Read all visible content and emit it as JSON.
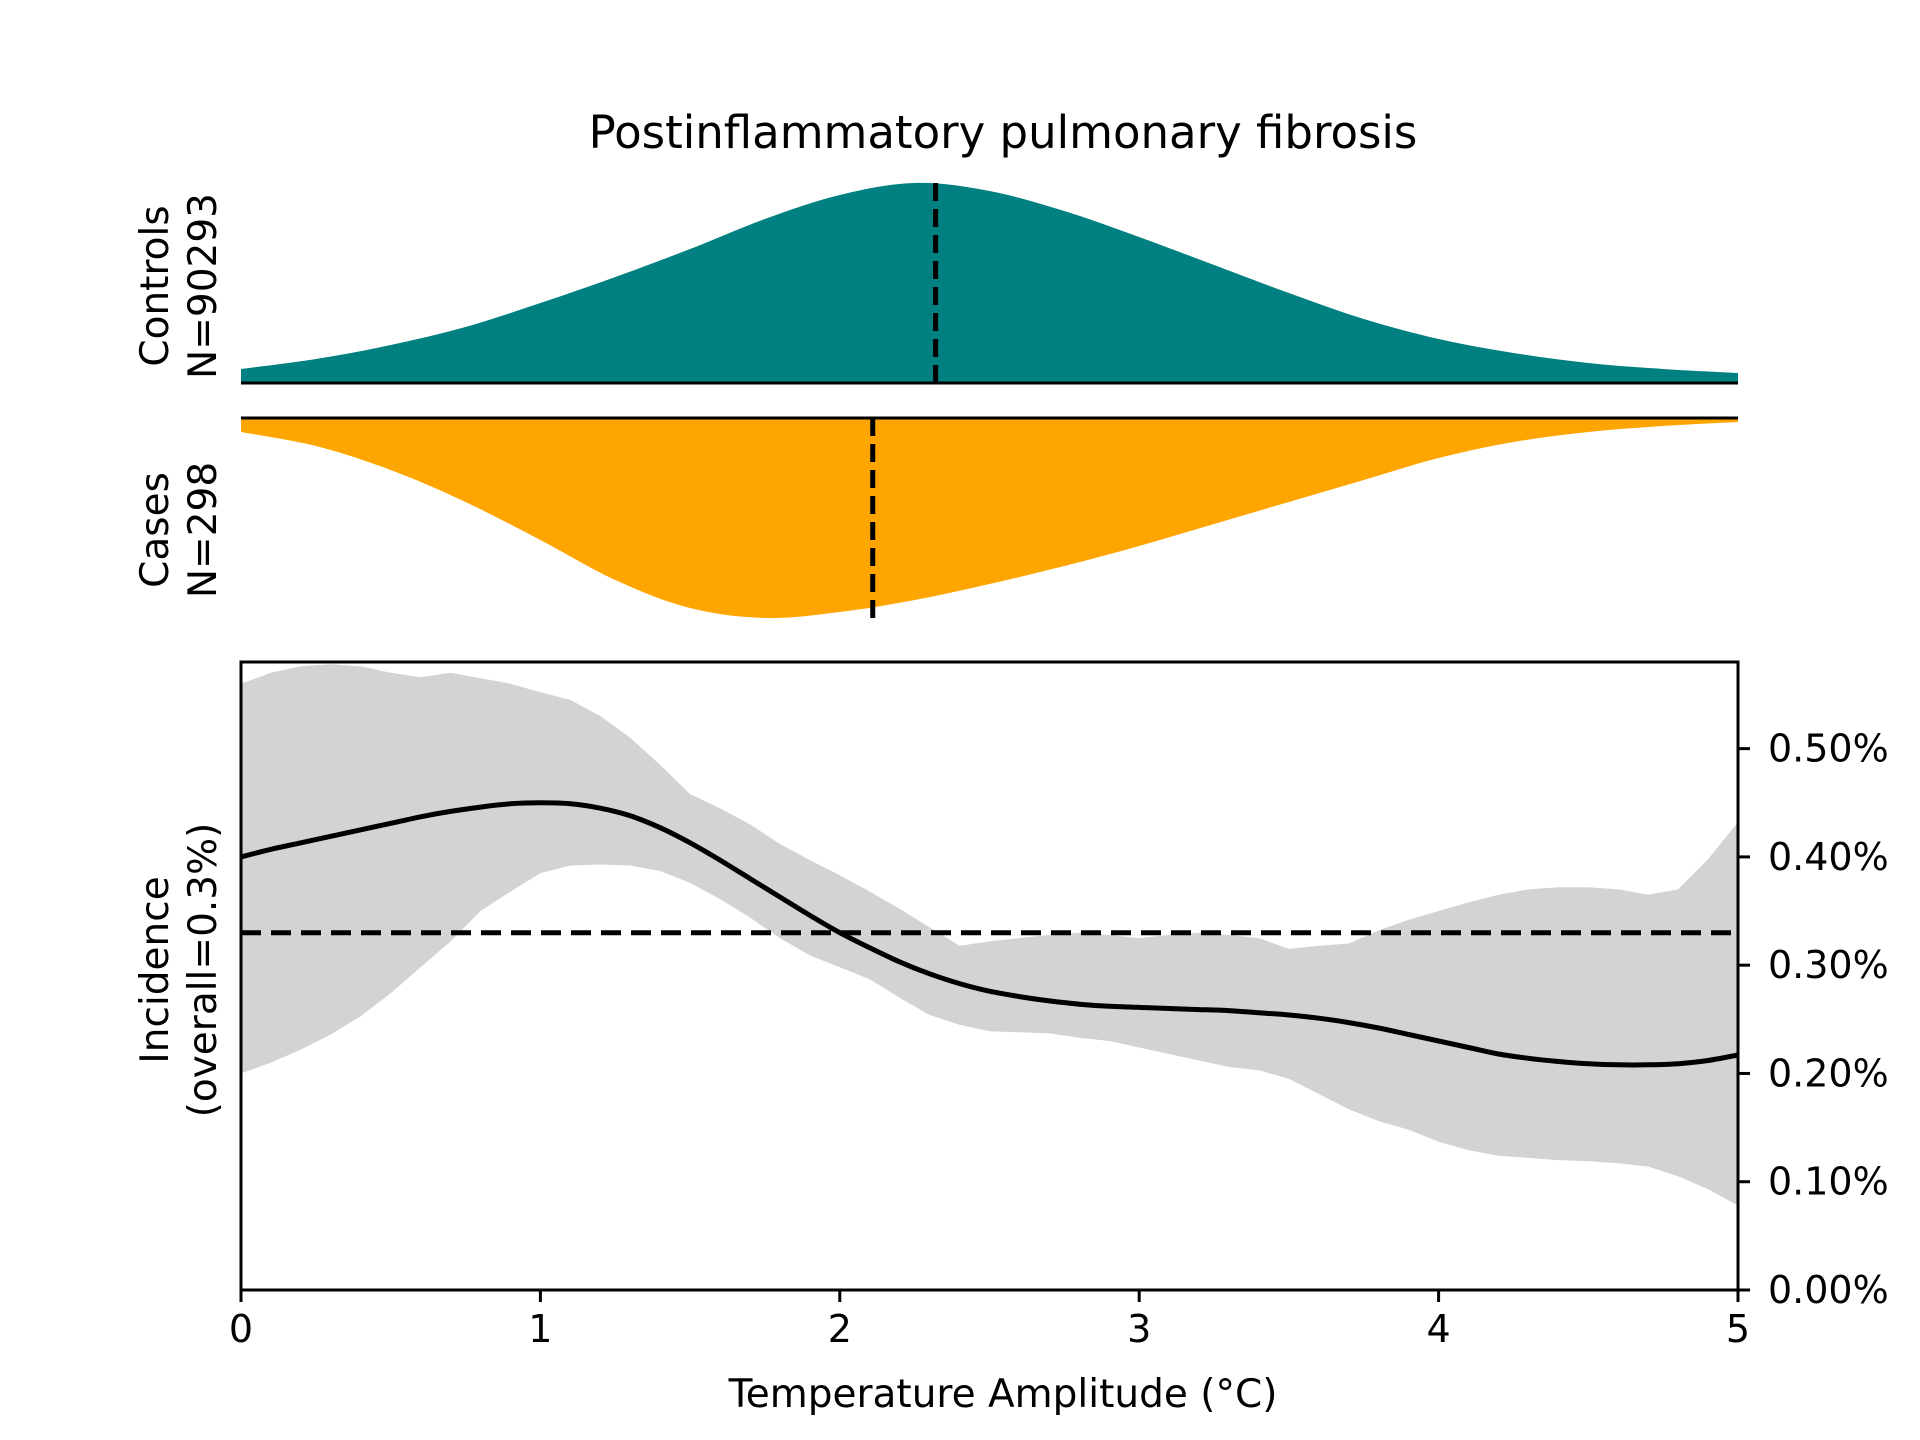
{
  "chart_data": {
    "type": "area",
    "title": "Postinflammatory pulmonary fibrosis",
    "xlabel": "Temperature Amplitude (°C)",
    "xlim": [
      0,
      5
    ],
    "x_ticks": [
      0,
      1,
      2,
      3,
      4,
      5
    ],
    "controls": {
      "label": "Controls",
      "n_label": "N=90293",
      "color": "#008080",
      "median": 2.32,
      "x": [
        0,
        0.25,
        0.5,
        0.75,
        1.0,
        1.25,
        1.5,
        1.75,
        2.0,
        2.25,
        2.5,
        2.75,
        3.0,
        3.25,
        3.5,
        3.75,
        4.0,
        4.25,
        4.5,
        4.75,
        5.0
      ],
      "density": [
        0.07,
        0.12,
        0.19,
        0.28,
        0.4,
        0.53,
        0.67,
        0.82,
        0.94,
        1.0,
        0.96,
        0.86,
        0.73,
        0.59,
        0.45,
        0.32,
        0.22,
        0.15,
        0.1,
        0.07,
        0.05
      ]
    },
    "cases": {
      "label": "Cases",
      "n_label": "N=298",
      "color": "#FFA500",
      "median": 2.11,
      "x": [
        0,
        0.25,
        0.5,
        0.75,
        1.0,
        1.25,
        1.5,
        1.75,
        2.0,
        2.25,
        2.5,
        2.75,
        3.0,
        3.25,
        3.5,
        3.75,
        4.0,
        4.25,
        4.5,
        4.75,
        5.0
      ],
      "density": [
        0.07,
        0.14,
        0.26,
        0.42,
        0.61,
        0.81,
        0.95,
        1.0,
        0.97,
        0.91,
        0.83,
        0.74,
        0.64,
        0.53,
        0.42,
        0.31,
        0.2,
        0.12,
        0.07,
        0.04,
        0.02
      ]
    },
    "incidence": {
      "ylabel_line1": "Incidence",
      "ylabel_line2": "(overall=0.3%)",
      "overall": 0.33,
      "ylim": [
        0,
        0.58
      ],
      "y_ticks": [
        0,
        0.1,
        0.2,
        0.3,
        0.4,
        0.5
      ],
      "y_tick_labels": [
        "0.00%",
        "0.10%",
        "0.20%",
        "0.30%",
        "0.40%",
        "0.50%"
      ],
      "line_color": "#000000",
      "band_color": "#d3d3d3",
      "x": [
        0,
        0.1,
        0.2,
        0.3,
        0.4,
        0.5,
        0.6,
        0.7,
        0.8,
        0.9,
        1.0,
        1.1,
        1.2,
        1.3,
        1.4,
        1.5,
        1.6,
        1.7,
        1.8,
        1.9,
        2.0,
        2.1,
        2.2,
        2.3,
        2.4,
        2.5,
        2.6,
        2.7,
        2.8,
        2.9,
        3.0,
        3.1,
        3.2,
        3.3,
        3.4,
        3.5,
        3.6,
        3.7,
        3.8,
        3.9,
        4.0,
        4.1,
        4.2,
        4.3,
        4.4,
        4.5,
        4.6,
        4.7,
        4.8,
        4.9,
        5.0
      ],
      "mean": [
        0.4,
        0.407,
        0.413,
        0.419,
        0.425,
        0.431,
        0.437,
        0.442,
        0.446,
        0.449,
        0.45,
        0.449,
        0.445,
        0.438,
        0.427,
        0.413,
        0.397,
        0.38,
        0.363,
        0.346,
        0.33,
        0.316,
        0.303,
        0.292,
        0.283,
        0.276,
        0.271,
        0.267,
        0.264,
        0.262,
        0.261,
        0.26,
        0.259,
        0.258,
        0.256,
        0.254,
        0.251,
        0.247,
        0.242,
        0.236,
        0.23,
        0.224,
        0.218,
        0.214,
        0.211,
        0.209,
        0.208,
        0.208,
        0.209,
        0.212,
        0.217
      ],
      "upper": [
        0.56,
        0.57,
        0.576,
        0.578,
        0.576,
        0.57,
        0.566,
        0.57,
        0.565,
        0.56,
        0.552,
        0.545,
        0.53,
        0.51,
        0.485,
        0.458,
        0.445,
        0.43,
        0.412,
        0.397,
        0.383,
        0.368,
        0.352,
        0.335,
        0.318,
        0.322,
        0.325,
        0.328,
        0.33,
        0.328,
        0.325,
        0.328,
        0.33,
        0.328,
        0.325,
        0.315,
        0.318,
        0.32,
        0.332,
        0.342,
        0.35,
        0.358,
        0.365,
        0.37,
        0.372,
        0.372,
        0.37,
        0.365,
        0.37,
        0.398,
        0.432
      ],
      "lower": [
        0.2,
        0.21,
        0.222,
        0.236,
        0.253,
        0.274,
        0.298,
        0.322,
        0.35,
        0.368,
        0.385,
        0.392,
        0.393,
        0.392,
        0.387,
        0.376,
        0.361,
        0.344,
        0.325,
        0.309,
        0.298,
        0.287,
        0.27,
        0.254,
        0.245,
        0.239,
        0.238,
        0.237,
        0.233,
        0.23,
        0.224,
        0.218,
        0.212,
        0.206,
        0.203,
        0.195,
        0.181,
        0.167,
        0.156,
        0.148,
        0.137,
        0.129,
        0.124,
        0.122,
        0.12,
        0.119,
        0.117,
        0.114,
        0.105,
        0.093,
        0.078
      ]
    }
  }
}
